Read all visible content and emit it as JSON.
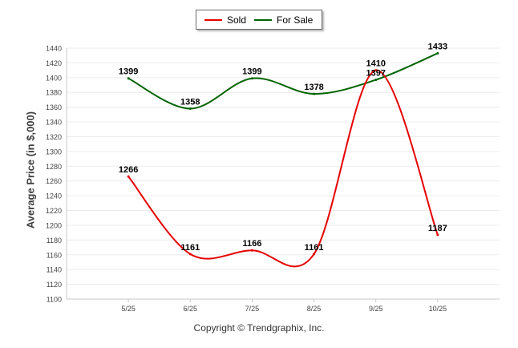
{
  "chart_data": {
    "type": "line",
    "categories": [
      "5/25",
      "6/25",
      "7/25",
      "8/25",
      "9/25",
      "10/25"
    ],
    "series": [
      {
        "name": "Sold",
        "color": "#e60000",
        "values": [
          1266,
          1161,
          1166,
          1161,
          1410,
          1187
        ]
      },
      {
        "name": "For Sale",
        "color": "#006400",
        "values": [
          1399,
          1358,
          1399,
          1378,
          1397,
          1433
        ]
      }
    ],
    "ylabel": "Average Price (in $,000)",
    "xlabel": "",
    "ylim": [
      1100,
      1440
    ],
    "yticks": [
      1100,
      1120,
      1140,
      1160,
      1180,
      1200,
      1220,
      1240,
      1260,
      1280,
      1300,
      1320,
      1340,
      1360,
      1380,
      1400,
      1420,
      1440
    ],
    "legend_position": "top-center",
    "grid": true
  },
  "footer": {
    "copyright": "Copyright © Trendgraphix, Inc."
  }
}
